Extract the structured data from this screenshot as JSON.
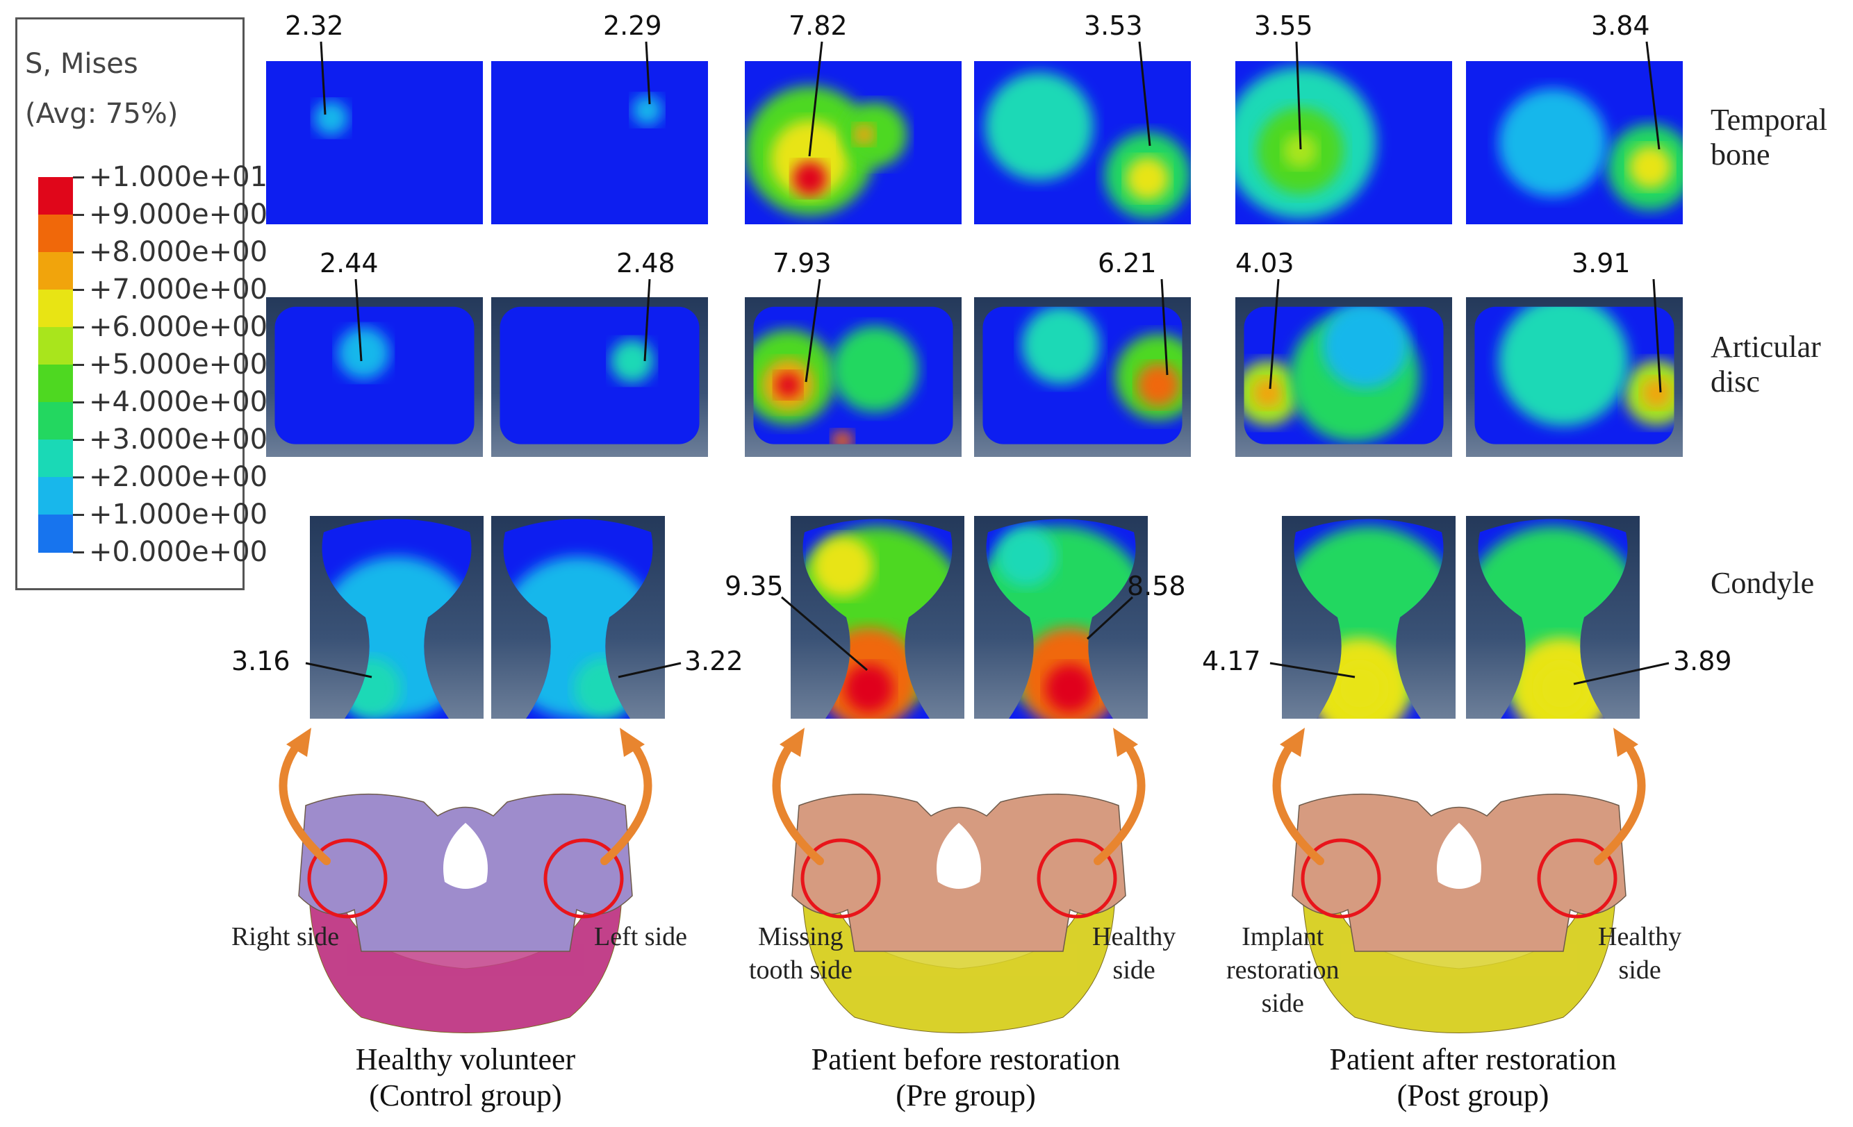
{
  "legend": {
    "title": "S, Mises",
    "avg": "(Avg: 75%)",
    "ticks": [
      "+1.000e+01",
      "+9.000e+00",
      "+8.000e+00",
      "+7.000e+00",
      "+6.000e+00",
      "+5.000e+00",
      "+4.000e+00",
      "+3.000e+00",
      "+2.000e+00",
      "+1.000e+00",
      "+0.000e+00"
    ],
    "colors": [
      "#e0061a",
      "#f0680a",
      "#f1a40c",
      "#e8e414",
      "#a9e51c",
      "#4ed821",
      "#23d760",
      "#1ad9b6",
      "#18b7eb",
      "#1774ee",
      "#0d1ef0"
    ]
  },
  "row_labels": {
    "temporal_bone": [
      "Temporal",
      "bone"
    ],
    "articular_disc": [
      "Articular",
      "disc"
    ],
    "condyle": "Condyle"
  },
  "values": {
    "temporal": [
      "2.32",
      "2.29",
      "7.82",
      "3.53",
      "3.55",
      "3.84"
    ],
    "disc": [
      "2.44",
      "2.48",
      "7.93",
      "6.21",
      "4.03",
      "3.91"
    ],
    "condyle": [
      "3.16",
      "3.22",
      "9.35",
      "8.58",
      "4.17",
      "3.89"
    ]
  },
  "side_labels": {
    "control": [
      "Right side",
      "Left side"
    ],
    "pre": [
      [
        "Missing",
        "tooth side"
      ],
      [
        "Healthy",
        "side"
      ]
    ],
    "post": [
      [
        "Implant",
        "restoration",
        "side"
      ],
      [
        "Healthy",
        "side"
      ]
    ]
  },
  "captions": {
    "control": [
      "Healthy volunteer",
      "(Control group)"
    ],
    "pre": [
      "Patient before restoration",
      "(Pre group)"
    ],
    "post": [
      "Patient after restoration",
      "(Post group)"
    ]
  },
  "colors": {
    "circle": "#e8151b",
    "arrow": "#e8852f",
    "skull_control": "#9e8ccc",
    "mandible_control": "#c2418a",
    "skull_patient": "#d69b80",
    "mandible_patient": "#d9d12a"
  }
}
